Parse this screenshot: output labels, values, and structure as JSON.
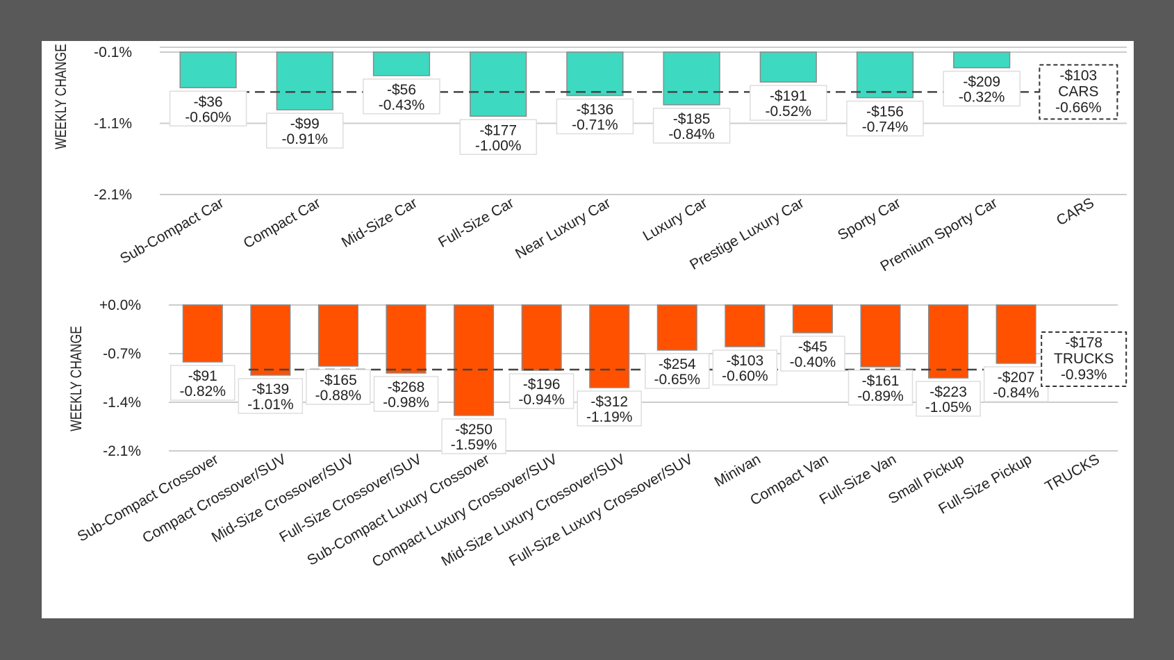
{
  "chart_data": [
    {
      "type": "bar",
      "title": "",
      "ylabel": "WEEKLY CHANGE",
      "xlabel": "",
      "ylim": [
        -2.1,
        -0.1
      ],
      "yticks": [
        "-0.1%",
        "-1.1%",
        "-2.1%"
      ],
      "ytick_values": [
        -0.1,
        -1.1,
        -2.1
      ],
      "grid": true,
      "bar_color": "#3ED9C1",
      "categories": [
        "Sub-Compact Car",
        "Compact Car",
        "Mid-Size Car",
        "Full-Size Car",
        "Near Luxury Car",
        "Luxury Car",
        "Prestige Luxury Car",
        "Sporty Car",
        "Premium Sporty Car"
      ],
      "values_pct": [
        -0.6,
        -0.91,
        -0.43,
        -1.0,
        -0.71,
        -0.84,
        -0.52,
        -0.74,
        -0.32
      ],
      "dollar_labels": [
        "-$36",
        "-$99",
        "-$56",
        "-$177",
        "-$136",
        "-$185",
        "-$191",
        "-$156",
        "-$209"
      ],
      "pct_labels": [
        "-0.60%",
        "-0.91%",
        "-0.43%",
        "-1.00%",
        "-0.71%",
        "-0.84%",
        "-0.52%",
        "-0.74%",
        "-0.32%"
      ],
      "total": {
        "category": "CARS",
        "label": "CARS",
        "dollar": "-$103",
        "pct_label": "-0.66%",
        "value_pct": -0.66
      }
    },
    {
      "type": "bar",
      "title": "",
      "ylabel": "WEEKLY CHANGE",
      "xlabel": "",
      "ylim": [
        -2.1,
        0.0
      ],
      "yticks": [
        "+0.0%",
        "-0.7%",
        "-1.4%",
        "-2.1%"
      ],
      "ytick_values": [
        0.0,
        -0.7,
        -1.4,
        -2.1
      ],
      "grid": true,
      "bar_color": "#FF5100",
      "categories": [
        "Sub-Compact Crossover",
        "Compact Crossover/SUV",
        "Mid-Size Crossover/SUV",
        "Full-Size Crossover/SUV",
        "Sub-Compact Luxury Crossover",
        "Compact Luxury Crossover/SUV",
        "Mid-Size Luxury Crossover/SUV",
        "Full-Size Luxury Crossover/SUV",
        "Minivan",
        "Compact Van",
        "Full-Size Van",
        "Small Pickup",
        "Full-Size Pickup"
      ],
      "values_pct": [
        -0.82,
        -1.01,
        -0.88,
        -0.98,
        -1.59,
        -0.94,
        -1.19,
        -0.65,
        -0.6,
        -0.4,
        -0.89,
        -1.05,
        -0.84
      ],
      "dollar_labels": [
        "-$91",
        "-$139",
        "-$165",
        "-$268",
        "-$250",
        "-$196",
        "-$312",
        "-$254",
        "-$103",
        "-$45",
        "-$161",
        "-$223",
        "-$207"
      ],
      "pct_labels": [
        "-0.82%",
        "-1.01%",
        "-0.88%",
        "-0.98%",
        "-1.59%",
        "-0.94%",
        "-1.19%",
        "-0.65%",
        "-0.60%",
        "-0.40%",
        "-0.89%",
        "-1.05%",
        "-0.84%"
      ],
      "total": {
        "category": "TRUCKS",
        "label": "TRUCKS",
        "dollar": "-$178",
        "pct_label": "-0.93%",
        "value_pct": -0.93
      }
    }
  ]
}
